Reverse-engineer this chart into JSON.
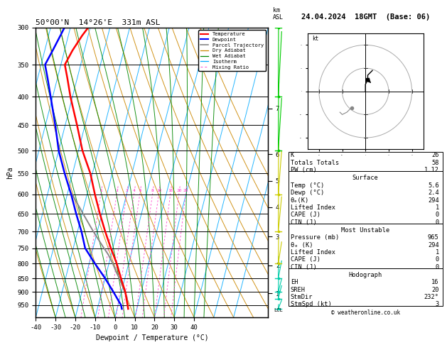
{
  "title_left": "50°00'N  14°26'E  331m ASL",
  "title_right": "24.04.2024  18GMT  (Base: 06)",
  "xlabel": "Dewpoint / Temperature (°C)",
  "ylabel_left": "hPa",
  "pressure_levels": [
    300,
    350,
    400,
    450,
    500,
    550,
    600,
    650,
    700,
    750,
    800,
    850,
    900,
    950
  ],
  "pmin": 300,
  "pmax": 1000,
  "temp_xlim": [
    -40,
    40
  ],
  "skew_factor": 37.5,
  "temp_data": {
    "pressure": [
      965,
      950,
      900,
      850,
      800,
      750,
      700,
      650,
      600,
      550,
      500,
      450,
      400,
      370,
      350,
      330,
      310,
      300
    ],
    "temperature": [
      5.6,
      4.8,
      2.0,
      -2.0,
      -6.0,
      -11.0,
      -16.0,
      -21.0,
      -26.0,
      -31.0,
      -38.0,
      -44.0,
      -51.0,
      -55.0,
      -58.0,
      -56.0,
      -53.0,
      -51.0
    ]
  },
  "dewp_data": {
    "pressure": [
      965,
      950,
      900,
      850,
      800,
      750,
      700,
      650,
      600,
      550,
      500,
      450,
      400,
      370,
      350,
      330,
      310,
      300
    ],
    "dewpoint": [
      2.4,
      1.5,
      -4.0,
      -10.0,
      -17.0,
      -24.0,
      -28.0,
      -33.0,
      -38.0,
      -44.0,
      -50.0,
      -55.0,
      -61.0,
      -65.0,
      -68.0,
      -66.0,
      -64.0,
      -63.0
    ]
  },
  "parcel_data": {
    "pressure": [
      965,
      950,
      920,
      900,
      880,
      860,
      850,
      830,
      800,
      770,
      750,
      700,
      650,
      600
    ],
    "temperature": [
      5.6,
      4.9,
      3.5,
      1.8,
      0.0,
      -1.8,
      -2.8,
      -5.0,
      -8.0,
      -11.5,
      -14.5,
      -22.0,
      -29.5,
      -37.5
    ]
  },
  "surface_stats": {
    "K": 26,
    "Totals_Totals": 58,
    "PW_cm": 1.12,
    "Temp_C": 5.6,
    "Dewp_C": 2.4,
    "theta_e_K": 294,
    "Lifted_Index": 1,
    "CAPE_J": 0,
    "CIN_J": 0
  },
  "most_unstable": {
    "Pressure_mb": 965,
    "theta_e_K": 294,
    "Lifted_Index": 1,
    "CAPE_J": 0,
    "CIN_J": 0
  },
  "hodograph": {
    "EH": 16,
    "SREH": 20,
    "StmDir": 232,
    "StmSpd_kt": 3
  },
  "mixing_ratio_lines": [
    1,
    2,
    3,
    4,
    5,
    8,
    10,
    15,
    20,
    25
  ],
  "km_labels": [
    1,
    2,
    3,
    4,
    5,
    6,
    7
  ],
  "km_pressures": [
    905,
    805,
    715,
    632,
    567,
    508,
    420
  ],
  "lcl_pressure": 945,
  "colors": {
    "temperature": "#ff0000",
    "dewpoint": "#0000ff",
    "parcel": "#888888",
    "dry_adiabat": "#cc8800",
    "wet_adiabat": "#008800",
    "isotherm": "#00aaff",
    "mixing_ratio": "#ff44cc",
    "grid_line": "#000000",
    "km_tick_cyan": "#00ccaa",
    "wind_yellow": "#cccc00",
    "wind_green": "#00cc00"
  },
  "wind_data": {
    "pressure": [
      965,
      925,
      900,
      850,
      800,
      700,
      600,
      500,
      400,
      300
    ],
    "u_kt": [
      2,
      3,
      3,
      4,
      5,
      8,
      10,
      12,
      15,
      18
    ],
    "v_kt": [
      1,
      2,
      3,
      5,
      6,
      10,
      12,
      15,
      18,
      22
    ]
  }
}
